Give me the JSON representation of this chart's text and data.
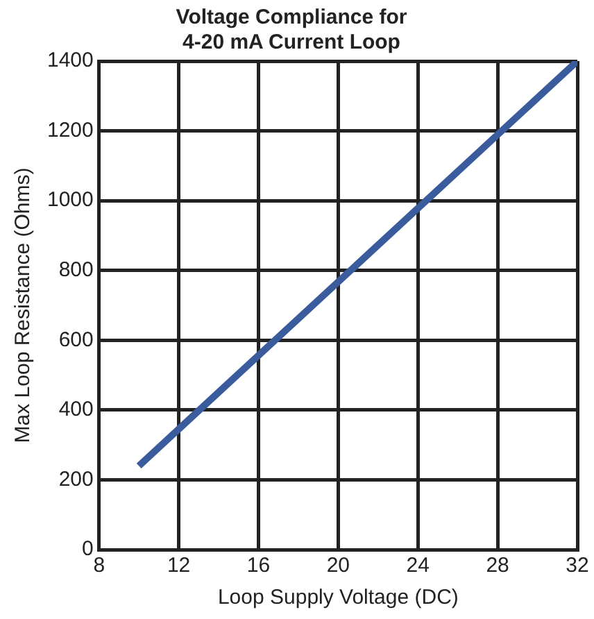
{
  "chart_data": {
    "type": "line",
    "title": [
      "Voltage Compliance for",
      "4-20 mA Current Loop"
    ],
    "xlabel": "Loop Supply Voltage (DC)",
    "ylabel": "Max Loop Resistance (Ohms)",
    "x": [
      10,
      32
    ],
    "series": [
      {
        "color": "#3a5b9c",
        "values": [
          240,
          1400
        ]
      }
    ],
    "xlim": [
      8,
      32
    ],
    "xticks": [
      8,
      12,
      16,
      20,
      24,
      28,
      32
    ],
    "ylim": [
      0,
      1400
    ],
    "yticks": [
      0,
      200,
      400,
      600,
      800,
      1000,
      1200,
      1400
    ],
    "grid": true,
    "legend": false,
    "marker": "none",
    "line_style": "solid"
  }
}
